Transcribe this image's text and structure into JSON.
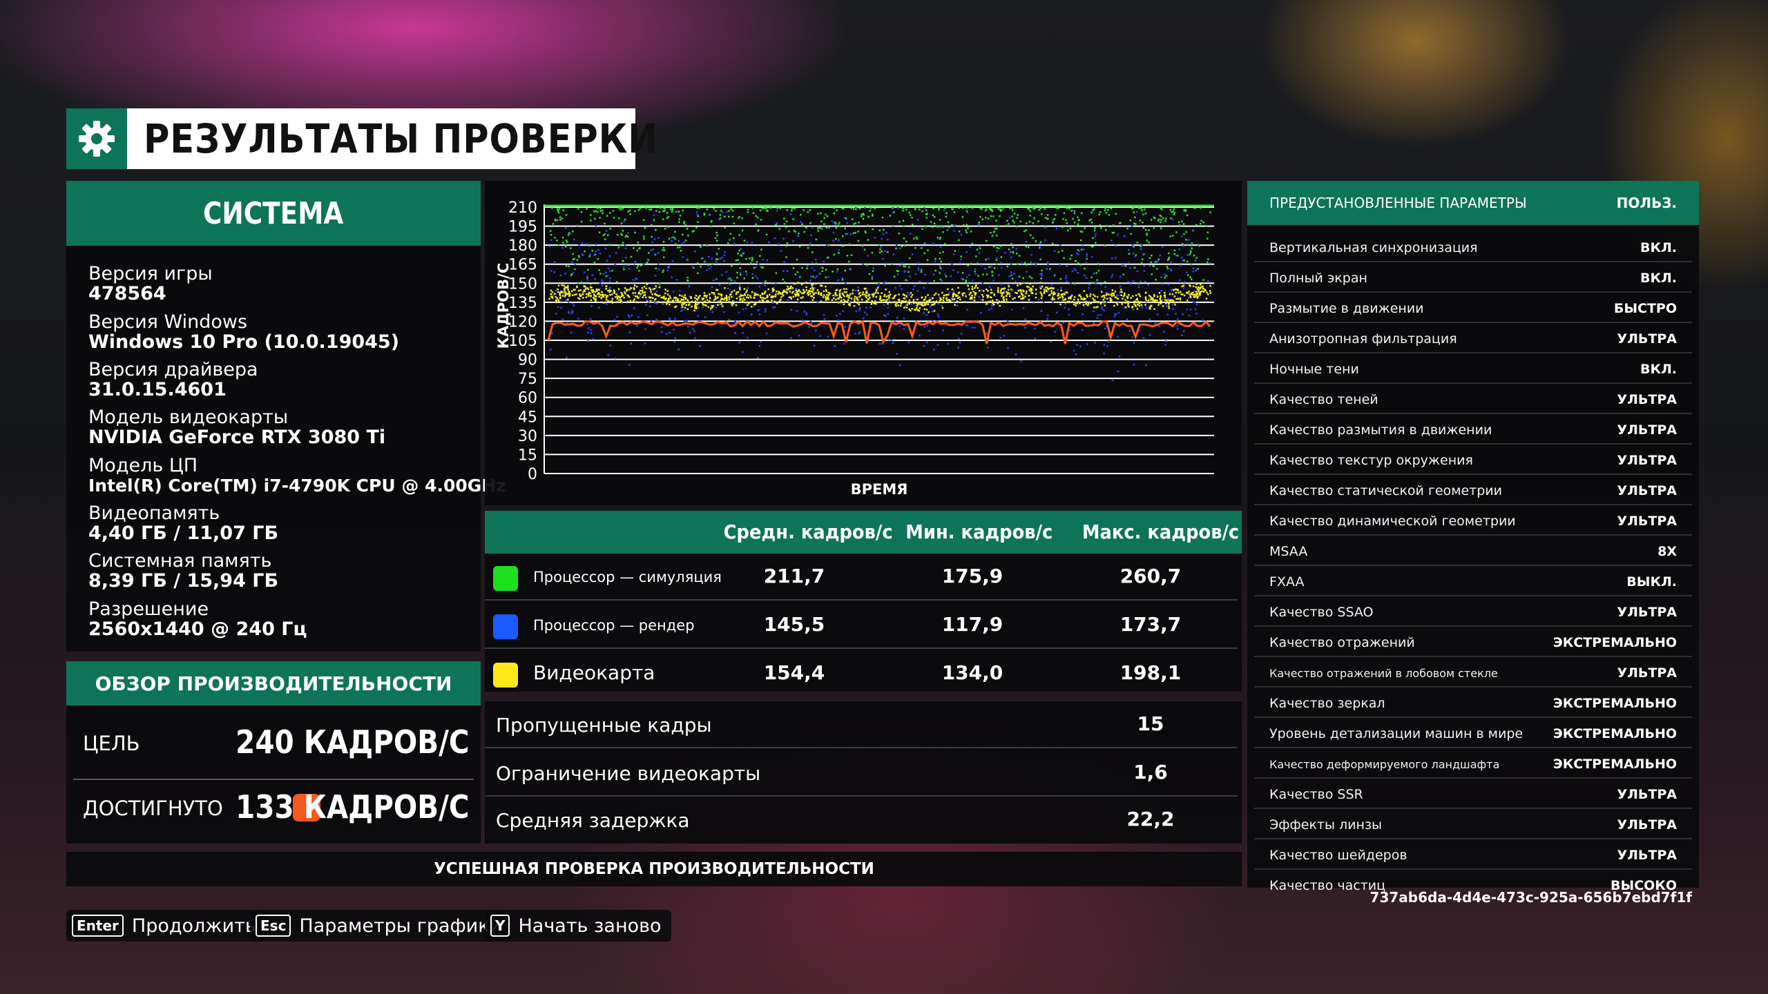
{
  "title": "РЕЗУЛЬТАТЫ ПРОВЕРКИ",
  "system": {
    "header": "СИСТЕМА",
    "items": [
      {
        "label": "Версия игры",
        "value": "478564"
      },
      {
        "label": "Версия Windows",
        "value": "Windows 10 Pro (10.0.19045)"
      },
      {
        "label": "Версия драйвера",
        "value": "31.0.15.4601"
      },
      {
        "label": "Модель видеокарты",
        "value": "NVIDIA GeForce RTX 3080 Ti"
      },
      {
        "label": "Модель ЦП",
        "value": "Intel(R) Core(TM) i7-4790K CPU @ 4.00GHz"
      },
      {
        "label": "Видеопамять",
        "value": "4,40 ГБ / 11,07 ГБ"
      },
      {
        "label": "Системная память",
        "value": "8,39 ГБ / 15,94 ГБ"
      },
      {
        "label": "Разрешение",
        "value": "2560x1440 @ 240 Гц"
      }
    ]
  },
  "performance": {
    "header": "ОБЗОР ПРОИЗВОДИТЕЛЬНОСТИ",
    "target_label": "ЦЕЛЬ",
    "target_value": "240 КАДРОВ/С",
    "achieved_label": "ДОСТИГНУТО",
    "achieved_value": "133 КАДРОВ/С",
    "achieved_color": "#f35a1f"
  },
  "status": "УСПЕШНАЯ ПРОВЕРКА ПРОИЗВОДИТЕЛЬНОСТИ",
  "chart_data": {
    "type": "scatter",
    "ylabel": "КАДРОВ/С",
    "xlabel": "ВРЕМЯ",
    "ylim": [
      0,
      210
    ],
    "yticks": [
      "210",
      "195",
      "180",
      "165",
      "150",
      "135",
      "120",
      "105",
      "90",
      "75",
      "60",
      "45",
      "30",
      "15",
      "0"
    ],
    "grid": true,
    "series": [
      {
        "color": "#2ee02e",
        "approx_mean": 211.7,
        "approx_min": 175.9,
        "approx_max": 260.7
      },
      {
        "color": "#2b45ff",
        "approx_mean": 145.5,
        "approx_min": 117.9,
        "approx_max": 173.7
      },
      {
        "color": "#f2ef1c",
        "approx_mean": 154.4,
        "approx_min": 134.0,
        "approx_max": 198.1
      },
      {
        "color": "#ff5a1a",
        "approx_mean": 117,
        "approx_min": 101,
        "approx_max": 122
      }
    ]
  },
  "stats": {
    "headers": [
      "Средн. кадров/с",
      "Мин. кадров/с",
      "Макс. кадров/с"
    ],
    "rows": [
      {
        "name": "Процессор — симуляция",
        "color": "#1ee01e",
        "avg": "211,7",
        "min": "175,9",
        "max": "260,7"
      },
      {
        "name": "Процессор — рендер",
        "color": "#1a5cff",
        "avg": "145,5",
        "min": "117,9",
        "max": "173,7"
      },
      {
        "name": "Видеокарта",
        "color": "#ffe81a",
        "avg": "154,4",
        "min": "134,0",
        "max": "198,1"
      }
    ]
  },
  "extra": [
    {
      "label": "Пропущенные кадры",
      "value": "15"
    },
    {
      "label": "Ограничение видеокарты",
      "value": "1,6"
    },
    {
      "label": "Средняя задержка",
      "value": "22,2"
    }
  ],
  "settings": {
    "header_label": "ПРЕДУСТАНОВЛЕННЫЕ ПАРАМЕТРЫ",
    "header_value": "ПОЛЬЗ.",
    "items": [
      {
        "name": "Вертикальная синхронизация",
        "value": "ВКЛ."
      },
      {
        "name": "Полный экран",
        "value": "ВКЛ."
      },
      {
        "name": "Размытие в движении",
        "value": "БЫСТРО"
      },
      {
        "name": "Анизотропная фильтрация",
        "value": "УЛЬТРА"
      },
      {
        "name": "Ночные тени",
        "value": "ВКЛ."
      },
      {
        "name": "Качество теней",
        "value": "УЛЬТРА"
      },
      {
        "name": "Качество размытия в движении",
        "value": "УЛЬТРА"
      },
      {
        "name": "Качество текстур окружения",
        "value": "УЛЬТРА"
      },
      {
        "name": "Качество статической геометрии",
        "value": "УЛЬТРА"
      },
      {
        "name": "Качество динамической геометрии",
        "value": "УЛЬТРА"
      },
      {
        "name": "MSAA",
        "value": "8X"
      },
      {
        "name": "FXAA",
        "value": "ВЫКЛ."
      },
      {
        "name": "Качество SSAO",
        "value": "УЛЬТРА"
      },
      {
        "name": "Качество отражений",
        "value": "ЭКСТРЕМАЛЬНО"
      },
      {
        "name": "Качество отражений в лобовом стекле",
        "value": "УЛЬТРА"
      },
      {
        "name": "Качество зеркал",
        "value": "ЭКСТРЕМАЛЬНО"
      },
      {
        "name": "Уровень детализации машин в мире",
        "value": "ЭКСТРЕМАЛЬНО"
      },
      {
        "name": "Качество деформируемого ландшафта",
        "value": "ЭКСТРЕМАЛЬНО"
      },
      {
        "name": "Качество SSR",
        "value": "УЛЬТРА"
      },
      {
        "name": "Эффекты линзы",
        "value": "УЛЬТРА"
      },
      {
        "name": "Качество шейдеров",
        "value": "УЛЬТРА"
      },
      {
        "name": "Качество частиц",
        "value": "ВЫСОКО"
      }
    ]
  },
  "hash": "737ab6da-4d4e-473c-925a-656b7ebd7f1f",
  "hints": [
    {
      "key": "Enter",
      "label": "Продолжить"
    },
    {
      "key": "Esc",
      "label": "Параметры графики"
    },
    {
      "key": "Y",
      "label": "Начать заново"
    }
  ]
}
